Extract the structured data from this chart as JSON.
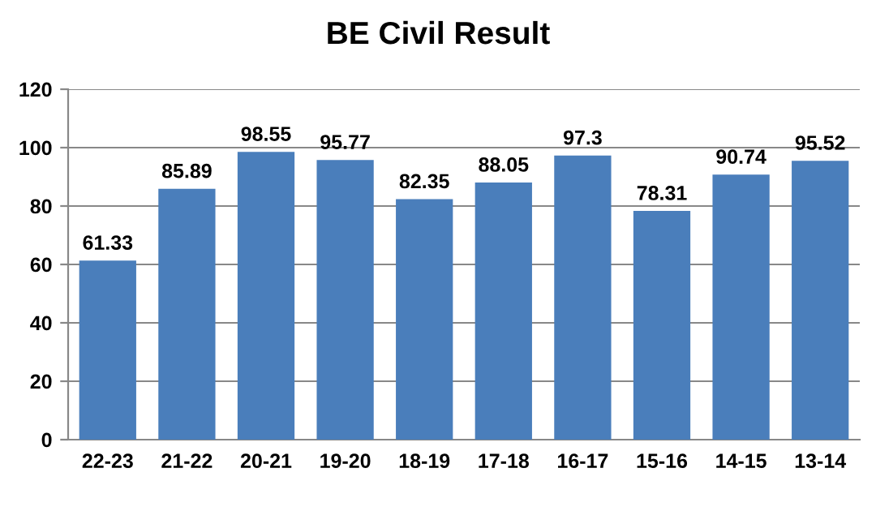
{
  "chart_data": {
    "type": "bar",
    "title": "BE Civil Result",
    "categories": [
      "22-23",
      "21-22",
      "20-21",
      "19-20",
      "18-19",
      "17-18",
      "16-17",
      "15-16",
      "14-15",
      "13-14"
    ],
    "values": [
      61.33,
      85.89,
      98.55,
      95.77,
      82.35,
      88.05,
      97.3,
      78.31,
      90.74,
      95.52
    ],
    "color": "#4a7ebb",
    "ylim": [
      0,
      120
    ],
    "yticks": [
      0,
      20,
      40,
      60,
      80,
      100,
      120
    ],
    "grid": "y",
    "data_labels": true
  }
}
